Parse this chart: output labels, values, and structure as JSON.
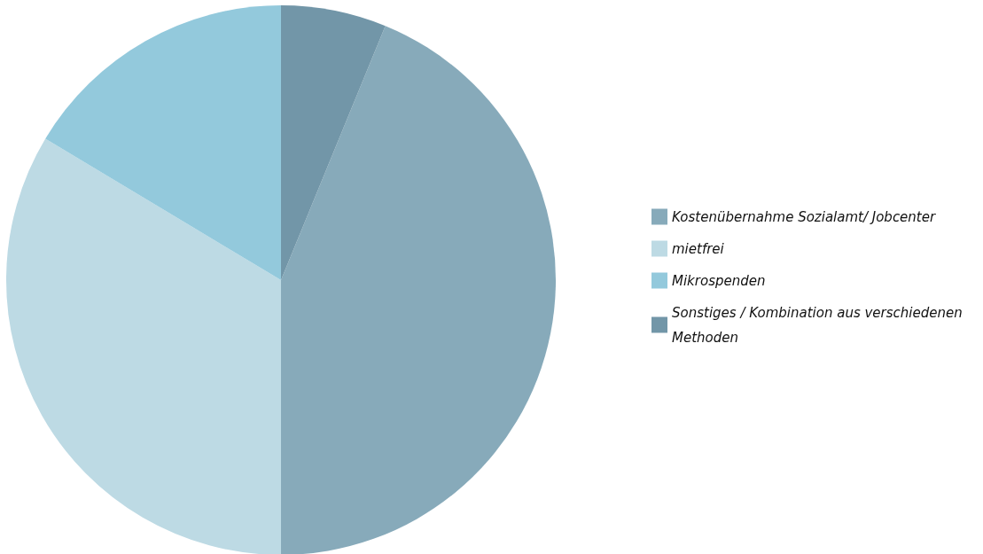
{
  "chart_data": {
    "type": "pie",
    "categories": [
      "Kostenübernahme Sozialamt/ Jobcenter",
      "mietfrei",
      "Mikrospenden",
      "Sonstiges / Kombination aus verschiedenen Methoden"
    ],
    "values": [
      43.8,
      33.6,
      16.4,
      6.2
    ],
    "colors": [
      "#87aaba",
      "#bddae4",
      "#93c9dc",
      "#7296a8"
    ],
    "legend": "right"
  }
}
